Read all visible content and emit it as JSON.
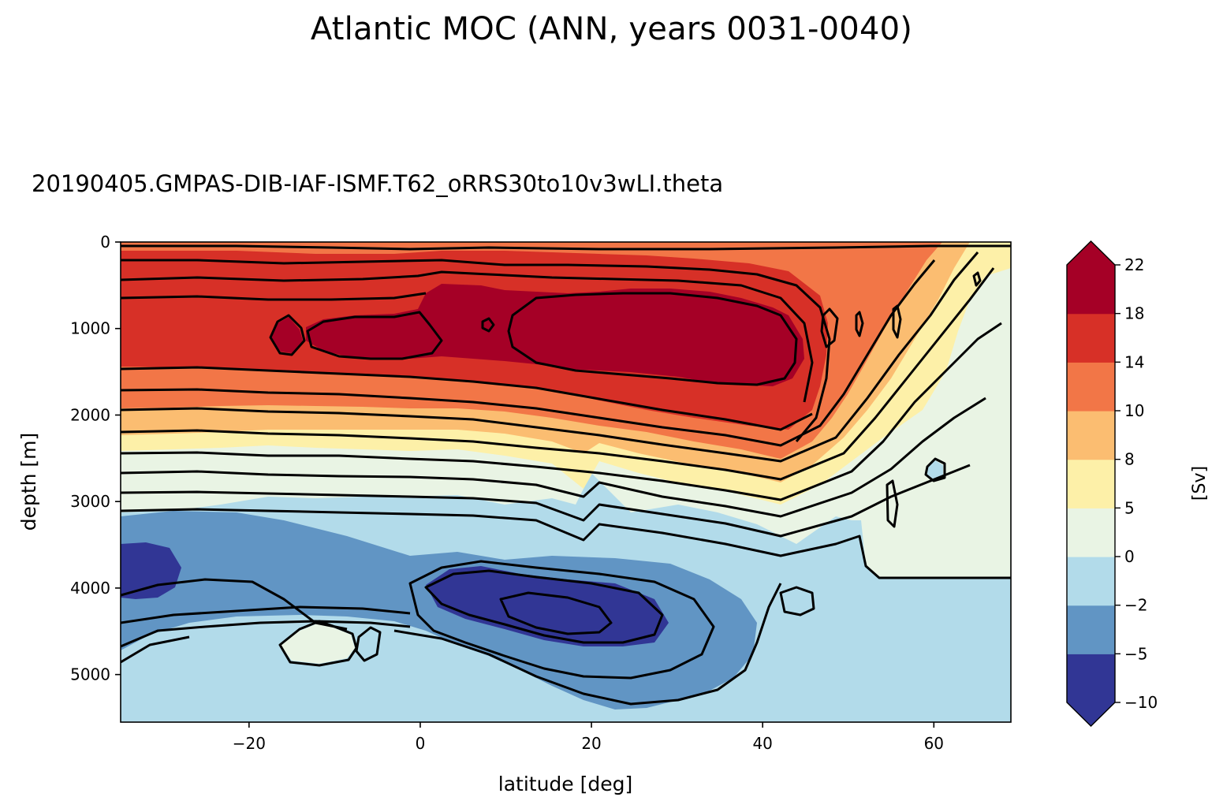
{
  "figure": {
    "suptitle": "Atlantic MOC (ANN, years 0031-0040)",
    "title": "20190405.GMPAS-DIB-IAF-ISMF.T62_oRRS30to10v3wLI.theta"
  },
  "chart_data": {
    "type": "contourf",
    "xlabel": "latitude [deg]",
    "ylabel": "depth [m]",
    "xlim": [
      -35,
      69
    ],
    "ylim": [
      5550,
      0
    ],
    "xticks": [
      -20,
      0,
      20,
      40,
      60
    ],
    "xtick_labels": [
      "−20",
      "0",
      "20",
      "40",
      "60"
    ],
    "yticks": [
      0,
      1000,
      2000,
      3000,
      4000,
      5000
    ],
    "ytick_labels": [
      "0",
      "1000",
      "2000",
      "3000",
      "4000",
      "5000"
    ],
    "colorbar": {
      "label": "[Sv]",
      "levels": [
        -10,
        -5,
        -2,
        0,
        5,
        8,
        10,
        14,
        18,
        22
      ],
      "tick_labels": [
        "−10",
        "−5",
        "−2",
        "0",
        "5",
        "8",
        "10",
        "14",
        "18",
        "22"
      ],
      "colors": [
        "#313695",
        "#6195c4",
        "#b2dbea",
        "#e9f4e4",
        "#fdf0a8",
        "#fbbd71",
        "#f27647",
        "#d73027",
        "#a50026"
      ],
      "extend": "both"
    },
    "regions": [
      {
        "name": "upper-cell-core-south",
        "value": 19,
        "lat_range": [
          -17,
          -14
        ],
        "depth_range": [
          850,
          1300
        ]
      },
      {
        "name": "upper-cell-core-main",
        "value": 20,
        "lat_range": [
          -13,
          43
        ],
        "depth_range": [
          550,
          1650
        ]
      },
      {
        "name": "deep-cell-core-south",
        "value": -6,
        "lat_range": [
          -35,
          -28
        ],
        "depth_range": [
          3500,
          4050
        ]
      },
      {
        "name": "deep-cell-core-main",
        "value": -6,
        "lat_range": [
          1,
          28
        ],
        "depth_range": [
          3900,
          4800
        ]
      },
      {
        "name": "positive-patch-bottom",
        "value": 2,
        "lat_range": [
          -16,
          -8
        ],
        "depth_range": [
          4500,
          4900
        ]
      },
      {
        "name": "subpolar-plateau",
        "value": 2,
        "lat_range": [
          52,
          69
        ],
        "depth_range": [
          900,
          3900
        ]
      }
    ],
    "contour_lines": "black contour lines drawn at each filled level"
  }
}
